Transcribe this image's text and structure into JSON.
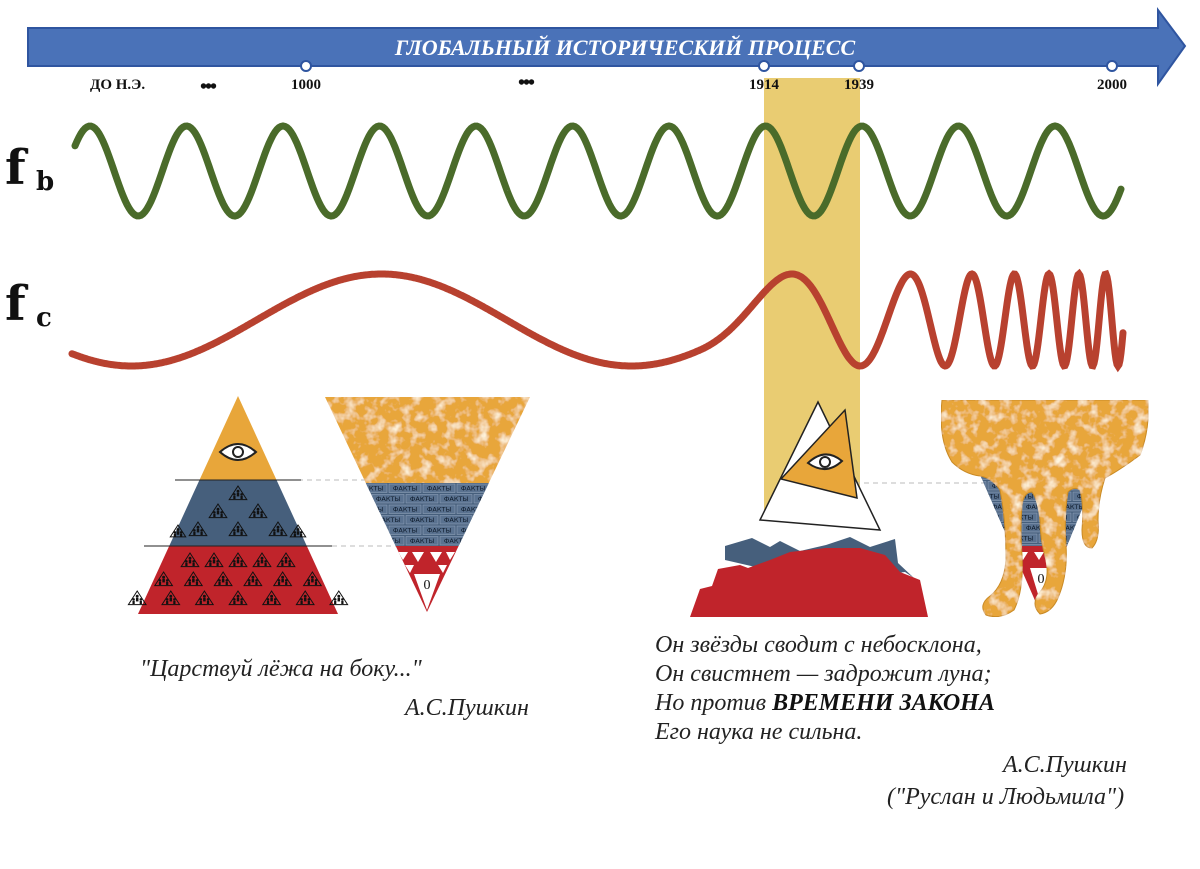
{
  "timeline": {
    "title": "ГЛОБАЛЬНЫЙ ИСТОРИЧЕСКИЙ ПРОЦЕСС",
    "labels": {
      "bc": "ДО Н.Э.",
      "ellipsis": "•••",
      "y1000": "1000",
      "y1914": "1914",
      "y1939": "1939",
      "y2000": "2000"
    }
  },
  "waves": {
    "fb": {
      "main": "f",
      "sub": "b",
      "color": "#4a6b2a"
    },
    "fc": {
      "main": "f",
      "sub": "c",
      "color": "#b8412f"
    }
  },
  "highlight_color": "#e8c96a",
  "pyramids": {
    "eye_layer_color": "#e8a63a",
    "middle_layer_color": "#465f7c",
    "bottom_layer_color": "#c0242b",
    "brick_label": "ФАКТЫ",
    "zero_label": "0"
  },
  "quotes": {
    "left": {
      "text": "\"Царствуй лёжа на боку...\"",
      "author": "А.С.Пушкин"
    },
    "right": {
      "line1": "Он звёзды сводит с небосклона,",
      "line2": "Он свистнет — задрожит луна;",
      "line3_pre": "Но против ",
      "line3_bold": "ВРЕМЕНИ ЗАКОНА",
      "line4": "Его наука не сильна.",
      "author": "А.С.Пушкин",
      "source": "(\"Руслан и Людьмила\")"
    }
  }
}
